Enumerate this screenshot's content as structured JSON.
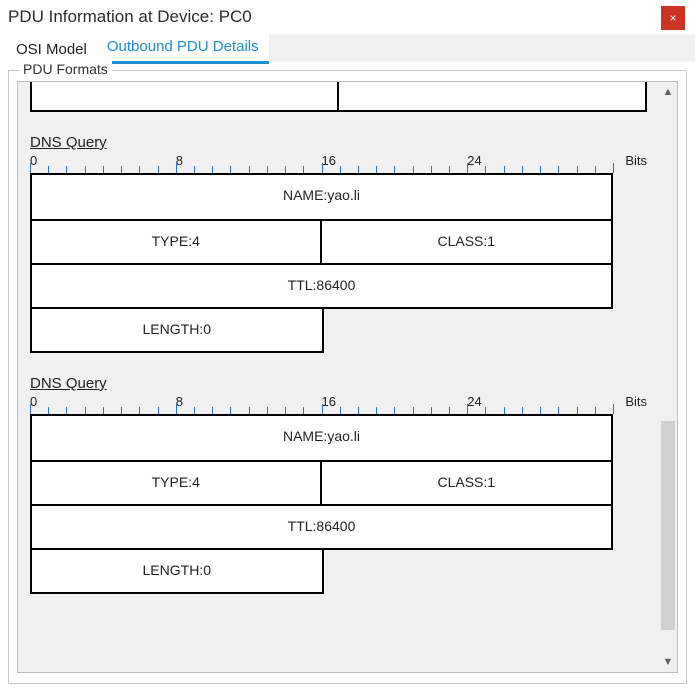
{
  "window": {
    "title": "PDU Information at Device: PC0",
    "close_glyph": "×"
  },
  "tabs": {
    "osi": "OSI Model",
    "outbound": "Outbound PDU Details"
  },
  "fieldset_label": "PDU Formats",
  "ruler": {
    "marks": [
      "0",
      "8",
      "16",
      "24"
    ],
    "bits_label": "Bits",
    "tick_count": 32
  },
  "toprow": {
    "left": "",
    "right": ""
  },
  "query1": {
    "title": "DNS Query",
    "name": "NAME:yao.li",
    "type": "TYPE:4",
    "class": "CLASS:1",
    "ttl": "TTL:86400",
    "length": "LENGTH:0"
  },
  "query2": {
    "title": "DNS Query",
    "name": "NAME:yao.li",
    "type": "TYPE:4",
    "class": "CLASS:1",
    "ttl": "TTL:86400",
    "length": "LENGTH:0"
  },
  "colors": {
    "accent": "#1e90d6",
    "tick": "#2a6fd6",
    "close": "#cc3322",
    "panel_bg": "#f0f0f0",
    "border": "#000000"
  }
}
